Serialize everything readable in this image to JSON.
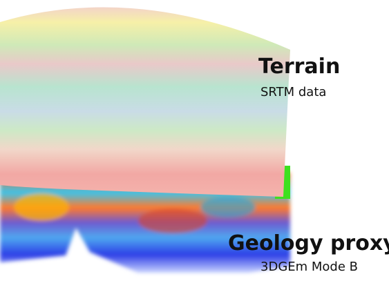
{
  "labels": [
    {
      "title": "Terrain",
      "subtitle": "SRTM data"
    },
    {
      "title": "Geology proxy",
      "subtitle": "3DGEm Mode B"
    }
  ]
}
